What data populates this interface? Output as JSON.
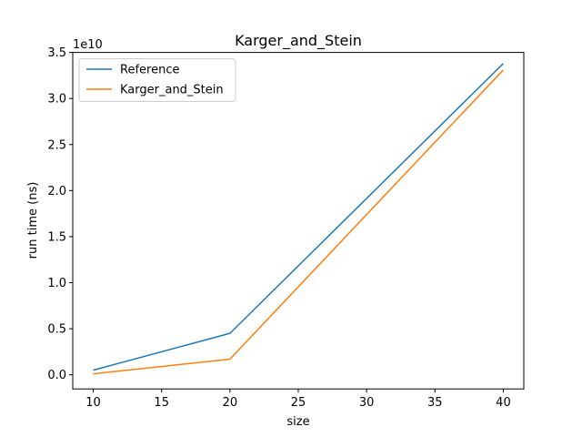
{
  "chart_data": {
    "type": "line",
    "title": "Karger_and_Stein",
    "xlabel": "size",
    "ylabel": "run time (ns)",
    "y_offset_label": "1e10",
    "x": [
      10,
      20,
      40
    ],
    "series": [
      {
        "name": "Reference",
        "color": "#1f77b4",
        "values": [
          0.05,
          0.45,
          3.38
        ]
      },
      {
        "name": "Karger_and_Stein",
        "color": "#ff7f0e",
        "values": [
          0.01,
          0.17,
          3.31
        ]
      }
    ],
    "xlim": [
      8.5,
      41.5
    ],
    "ylim": [
      -0.1536,
      3.5
    ],
    "xticks": [
      10,
      15,
      20,
      25,
      30,
      35,
      40
    ],
    "xtick_labels": [
      "10",
      "15",
      "20",
      "25",
      "30",
      "35",
      "40"
    ],
    "yticks": [
      0,
      0.5,
      1.0,
      1.5,
      2.0,
      2.5,
      3.0,
      3.5
    ],
    "ytick_labels": [
      "0.0",
      "0.5",
      "1.0",
      "1.5",
      "2.0",
      "2.5",
      "3.0",
      "3.5"
    ],
    "grid": false,
    "legend_position": "top-left"
  }
}
